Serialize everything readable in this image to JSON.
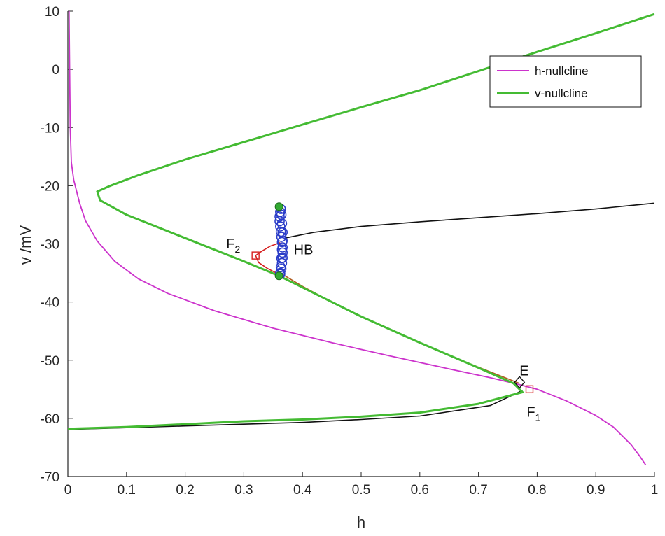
{
  "chart_data": {
    "type": "line",
    "xlabel": "h",
    "ylabel": "v /mV",
    "xlim": [
      0,
      1
    ],
    "ylim": [
      -70,
      10
    ],
    "x_ticks": [
      0,
      0.1,
      0.2,
      0.3,
      0.4,
      0.5,
      0.6,
      0.7,
      0.8,
      0.9,
      1
    ],
    "y_ticks": [
      10,
      0,
      -10,
      -20,
      -30,
      -40,
      -50,
      -60,
      -70
    ],
    "legend_position": "top-right",
    "series": [
      {
        "name": "h-nullcline",
        "color": "#cc33cc",
        "points": [
          [
            0.002,
            10
          ],
          [
            0.004,
            -10
          ],
          [
            0.006,
            -16
          ],
          [
            0.01,
            -19
          ],
          [
            0.02,
            -23
          ],
          [
            0.03,
            -26
          ],
          [
            0.05,
            -29.5
          ],
          [
            0.08,
            -33
          ],
          [
            0.12,
            -36
          ],
          [
            0.17,
            -38.5
          ],
          [
            0.25,
            -41.5
          ],
          [
            0.35,
            -44.5
          ],
          [
            0.45,
            -47
          ],
          [
            0.55,
            -49.3
          ],
          [
            0.65,
            -51.5
          ],
          [
            0.72,
            -53
          ],
          [
            0.77,
            -54.2
          ],
          [
            0.8,
            -55
          ],
          [
            0.85,
            -57
          ],
          [
            0.9,
            -59.5
          ],
          [
            0.93,
            -61.5
          ],
          [
            0.96,
            -64.5
          ],
          [
            0.975,
            -66.5
          ],
          [
            0.985,
            -68
          ]
        ]
      },
      {
        "name": "v-nullcline",
        "color": "#44bb33",
        "points": [
          [
            1.0,
            9.5
          ],
          [
            0.9,
            6.2
          ],
          [
            0.8,
            3
          ],
          [
            0.7,
            -0.3
          ],
          [
            0.6,
            -3.6
          ],
          [
            0.5,
            -6.5
          ],
          [
            0.4,
            -9.5
          ],
          [
            0.3,
            -12.5
          ],
          [
            0.2,
            -15.5
          ],
          [
            0.12,
            -18.2
          ],
          [
            0.07,
            -20.1
          ],
          [
            0.05,
            -21
          ],
          [
            0.055,
            -22.5
          ],
          [
            0.1,
            -25
          ],
          [
            0.2,
            -29
          ],
          [
            0.3,
            -33
          ],
          [
            0.36,
            -35.5
          ],
          [
            0.4,
            -37.5
          ],
          [
            0.5,
            -42.5
          ],
          [
            0.6,
            -47
          ],
          [
            0.7,
            -51.3
          ],
          [
            0.76,
            -54
          ],
          [
            0.775,
            -55.5
          ],
          [
            0.7,
            -57.5
          ],
          [
            0.6,
            -59
          ],
          [
            0.5,
            -59.7
          ],
          [
            0.4,
            -60.2
          ],
          [
            0.3,
            -60.5
          ],
          [
            0.2,
            -61
          ],
          [
            0.1,
            -61.5
          ],
          [
            0.0,
            -61.8
          ]
        ]
      }
    ],
    "other_curves": [
      {
        "color": "#111111",
        "points": [
          [
            0.37,
            -29
          ],
          [
            0.42,
            -28
          ],
          [
            0.5,
            -27
          ],
          [
            0.6,
            -26.2
          ],
          [
            0.7,
            -25.5
          ],
          [
            0.8,
            -24.8
          ],
          [
            0.9,
            -24
          ],
          [
            1.0,
            -23
          ]
        ]
      },
      {
        "color": "#111111",
        "points": [
          [
            0.775,
            -55.2
          ],
          [
            0.72,
            -57.8
          ],
          [
            0.6,
            -59.6
          ],
          [
            0.5,
            -60.2
          ],
          [
            0.4,
            -60.7
          ],
          [
            0.3,
            -61
          ],
          [
            0.2,
            -61.3
          ],
          [
            0.1,
            -61.6
          ],
          [
            0.0,
            -61.9
          ]
        ]
      },
      {
        "color": "#b05a1e",
        "points": [
          [
            0.365,
            -35.2
          ],
          [
            0.4,
            -37.3
          ],
          [
            0.45,
            -40
          ],
          [
            0.5,
            -42.5
          ],
          [
            0.55,
            -44.8
          ],
          [
            0.6,
            -47
          ],
          [
            0.65,
            -49.2
          ],
          [
            0.7,
            -51.2
          ],
          [
            0.74,
            -52.8
          ],
          [
            0.77,
            -54
          ]
        ]
      },
      {
        "color": "#d62020",
        "points": [
          [
            0.362,
            -29.8
          ],
          [
            0.345,
            -30.4
          ],
          [
            0.33,
            -31.3
          ],
          [
            0.32,
            -32
          ],
          [
            0.325,
            -33.2
          ],
          [
            0.34,
            -34.2
          ],
          [
            0.355,
            -35
          ]
        ]
      }
    ],
    "hopf_circles": {
      "color": "#2a3cc8",
      "h": [
        0.362,
        0.364,
        0.365,
        0.366,
        0.366,
        0.366,
        0.365,
        0.364,
        0.363,
        0.362,
        0.361,
        0.361,
        0.362,
        0.363,
        0.364,
        0.365,
        0.366,
        0.366,
        0.365,
        0.364,
        0.363,
        0.362
      ],
      "v": [
        -35.2,
        -34.3,
        -33.3,
        -32.4,
        -31.5,
        -30.6,
        -29.7,
        -28.8,
        -27.9,
        -27.0,
        -26.1,
        -25.3,
        -24.5,
        -24.0,
        -25.0,
        -26.5,
        -28.0,
        -29.5,
        -31.0,
        -32.5,
        -34.0,
        -35.0
      ]
    },
    "hopf_endpoints": {
      "color": "#33aa33",
      "points": [
        [
          0.36,
          -23.6
        ],
        [
          0.36,
          -35.5
        ]
      ]
    },
    "markers": [
      {
        "shape": "diamond",
        "h": 0.77,
        "v": -53.8,
        "color": "#111111"
      },
      {
        "shape": "square",
        "h": 0.787,
        "v": -55,
        "color": "#d62020"
      },
      {
        "shape": "square",
        "h": 0.32,
        "v": -32,
        "color": "#d62020"
      }
    ],
    "annotations": [
      {
        "text": "E",
        "sub": "",
        "h": 0.77,
        "v": -52.6
      },
      {
        "text": "F",
        "sub": "1",
        "h": 0.782,
        "v": -59.7
      },
      {
        "text": "F",
        "sub": "2",
        "h": 0.27,
        "v": -30.8
      },
      {
        "text": "HB",
        "sub": "",
        "h": 0.385,
        "v": -31.8
      }
    ]
  }
}
